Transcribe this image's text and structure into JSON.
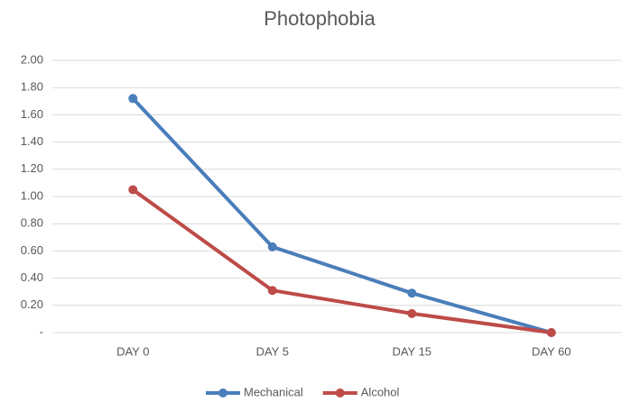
{
  "chart_data": {
    "type": "line",
    "title": "Photophobia",
    "categories": [
      "DAY 0",
      "DAY 5",
      "DAY 15",
      "DAY 60"
    ],
    "series": [
      {
        "name": "Mechanical",
        "color": "#4a7ebb",
        "values": [
          1.72,
          0.63,
          0.29,
          0
        ]
      },
      {
        "name": "Alcohol",
        "color": "#be4b48",
        "values": [
          1.05,
          0.31,
          0.14,
          0
        ]
      }
    ],
    "ylim": [
      0,
      2
    ],
    "yticks": [
      {
        "value": 0,
        "label": "-"
      },
      {
        "value": 0.2,
        "label": "0.20"
      },
      {
        "value": 0.4,
        "label": "0.40"
      },
      {
        "value": 0.6,
        "label": "0.60"
      },
      {
        "value": 0.8,
        "label": "0.80"
      },
      {
        "value": 1.0,
        "label": "1.00"
      },
      {
        "value": 1.2,
        "label": "1.20"
      },
      {
        "value": 1.4,
        "label": "1.40"
      },
      {
        "value": 1.6,
        "label": "1.60"
      },
      {
        "value": 1.8,
        "label": "1.80"
      },
      {
        "value": 2.0,
        "label": "2.00"
      }
    ],
    "grid": true,
    "legend": "bottom"
  }
}
